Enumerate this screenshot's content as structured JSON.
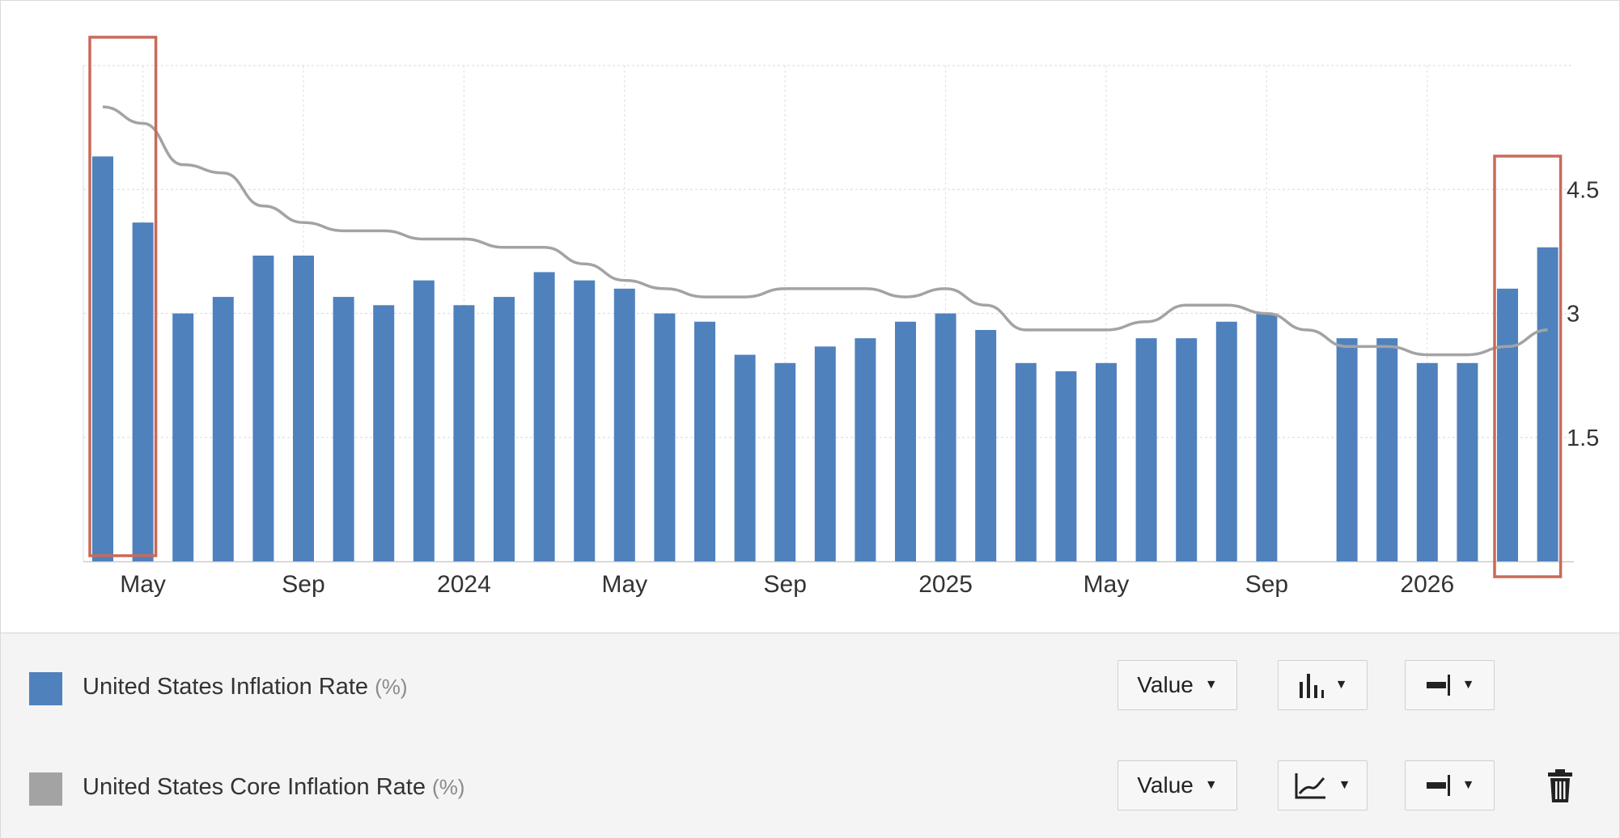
{
  "chart_data": {
    "type": "bar+line",
    "x": [
      "2023-04",
      "2023-05",
      "2023-06",
      "2023-07",
      "2023-08",
      "2023-09",
      "2023-10",
      "2023-11",
      "2023-12",
      "2024-01",
      "2024-02",
      "2024-03",
      "2024-04",
      "2024-05",
      "2024-06",
      "2024-07",
      "2024-08",
      "2024-09",
      "2024-10",
      "2024-11",
      "2024-12",
      "2025-01",
      "2025-02",
      "2025-03",
      "2025-04",
      "2025-05",
      "2025-06",
      "2025-07",
      "2025-08",
      "2025-09",
      "2025-10",
      "2025-11",
      "2025-12",
      "2026-01",
      "2026-02",
      "2026-03",
      "2026-04"
    ],
    "x_tick_labels": [
      {
        "x": "2023-05",
        "label": "May"
      },
      {
        "x": "2023-09",
        "label": "Sep"
      },
      {
        "x": "2024-01",
        "label": "2024"
      },
      {
        "x": "2024-05",
        "label": "May"
      },
      {
        "x": "2024-09",
        "label": "Sep"
      },
      {
        "x": "2025-01",
        "label": "2025"
      },
      {
        "x": "2025-05",
        "label": "May"
      },
      {
        "x": "2025-09",
        "label": "Sep"
      },
      {
        "x": "2026-01",
        "label": "2026"
      }
    ],
    "y_ticks": [
      1.5,
      3,
      4.5
    ],
    "ylim": [
      0,
      6
    ],
    "y_axis_side": "right",
    "grid": true,
    "series": [
      {
        "name": "United States Inflation Rate",
        "type": "bar",
        "color": "#4f81bd",
        "values": [
          4.9,
          4.1,
          3.0,
          3.2,
          3.7,
          3.7,
          3.2,
          3.1,
          3.4,
          3.1,
          3.2,
          3.5,
          3.4,
          3.3,
          3.0,
          2.9,
          2.5,
          2.4,
          2.6,
          2.7,
          2.9,
          3.0,
          2.8,
          2.4,
          2.3,
          2.4,
          2.7,
          2.7,
          2.9,
          3.0,
          null,
          2.7,
          2.7,
          2.4,
          2.4,
          3.3,
          3.8
        ]
      },
      {
        "name": "United States Core Inflation Rate",
        "type": "line",
        "color": "#a3a3a3",
        "values": [
          5.5,
          5.3,
          4.8,
          4.7,
          4.3,
          4.1,
          4.0,
          4.0,
          3.9,
          3.9,
          3.8,
          3.8,
          3.6,
          3.4,
          3.3,
          3.2,
          3.2,
          3.3,
          3.3,
          3.3,
          3.2,
          3.3,
          3.1,
          2.8,
          2.8,
          2.8,
          2.9,
          3.1,
          3.1,
          3.0,
          2.8,
          2.6,
          2.6,
          2.5,
          2.5,
          2.6,
          2.8
        ]
      }
    ],
    "highlights": [
      {
        "from": "2023-04",
        "to": "2023-05",
        "color": "#c96a5a"
      },
      {
        "from": "2026-03",
        "to": "2026-04",
        "color": "#c96a5a"
      }
    ]
  },
  "legend": {
    "rows": [
      {
        "name": "United States Inflation Rate",
        "unit": "(%)",
        "color": "#4f81bd",
        "value_label": "Value",
        "type_icon": "bar-chart-icon",
        "axis_icon": "right-axis-icon"
      },
      {
        "name": "United States Core Inflation Rate",
        "unit": "(%)",
        "color": "#a3a3a3",
        "value_label": "Value",
        "type_icon": "line-chart-icon",
        "axis_icon": "right-axis-icon",
        "remove_icon": "trash-icon"
      }
    ]
  }
}
